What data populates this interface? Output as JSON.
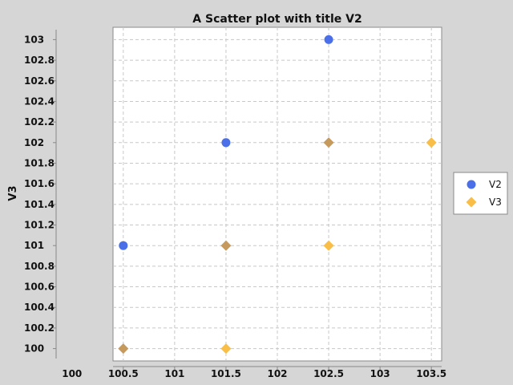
{
  "chart_data": {
    "type": "scatter",
    "title": "A Scatter plot with title V2",
    "xlabel": "",
    "ylabel": "V3",
    "xlim": [
      100.4,
      103.6
    ],
    "ylim": [
      99.88,
      103.12
    ],
    "x_ticks": [
      100,
      100.5,
      101,
      101.5,
      102,
      102.5,
      103,
      103.5
    ],
    "x_tick_labels": [
      "100",
      "100.5",
      "101",
      "101.5",
      "102",
      "102.5",
      "103",
      "103.5"
    ],
    "y_ticks": [
      100,
      100.2,
      100.4,
      100.6,
      100.8,
      101,
      101.2,
      101.4,
      101.6,
      101.8,
      102,
      102.2,
      102.4,
      102.6,
      102.8,
      103
    ],
    "y_tick_labels": [
      "100",
      "100.2",
      "100.4",
      "100.6",
      "100.8",
      "101",
      "101.2",
      "101.4",
      "101.6",
      "101.8",
      "102",
      "102.2",
      "102.4",
      "102.6",
      "102.8",
      "103"
    ],
    "grid": true,
    "legend_position": "right",
    "series": [
      {
        "name": "V2",
        "marker": "circle",
        "color": "#4a6fe8",
        "points": [
          [
            100.5,
            100
          ],
          [
            100.5,
            101
          ],
          [
            101.5,
            101
          ],
          [
            101.5,
            102
          ],
          [
            102.5,
            102
          ],
          [
            102.5,
            103
          ]
        ]
      },
      {
        "name": "V3",
        "marker": "diamond",
        "color": "#f8be48",
        "points": [
          [
            100.5,
            100
          ],
          [
            101.5,
            100
          ],
          [
            101.5,
            101
          ],
          [
            102.5,
            101
          ],
          [
            102.5,
            102
          ],
          [
            103.5,
            102
          ]
        ]
      }
    ],
    "overlap_color": "#c59a5c"
  }
}
